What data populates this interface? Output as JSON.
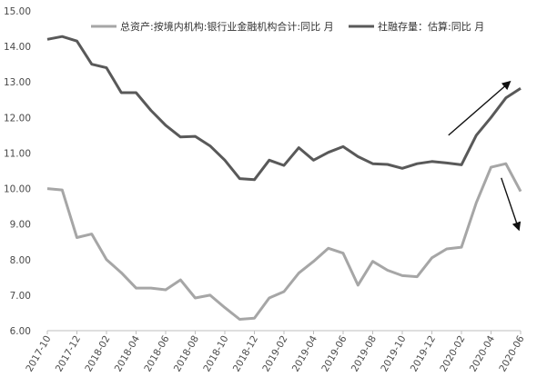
{
  "chart_data": {
    "type": "line",
    "x": [
      "2017-10",
      "2017-11",
      "2017-12",
      "2018-01",
      "2018-02",
      "2018-03",
      "2018-04",
      "2018-05",
      "2018-06",
      "2018-07",
      "2018-08",
      "2018-09",
      "2018-10",
      "2018-11",
      "2018-12",
      "2019-01",
      "2019-02",
      "2019-03",
      "2019-04",
      "2019-05",
      "2019-06",
      "2019-07",
      "2019-08",
      "2019-09",
      "2019-10",
      "2019-11",
      "2019-12",
      "2020-01",
      "2020-02",
      "2020-03",
      "2020-04",
      "2020-05",
      "2020-06"
    ],
    "x_tick_labels": [
      "2017-10",
      "2017-12",
      "2018-02",
      "2018-04",
      "2018-06",
      "2018-08",
      "2018-10",
      "2018-12",
      "2019-02",
      "2019-04",
      "2019-06",
      "2019-08",
      "2019-10",
      "2019-12",
      "2020-02",
      "2020-04",
      "2020-06"
    ],
    "ylim": [
      6.0,
      15.0
    ],
    "y_ticks": [
      "6.00",
      "7.00",
      "8.00",
      "9.00",
      "10.00",
      "11.00",
      "12.00",
      "13.00",
      "14.00",
      "15.00"
    ],
    "grid": false,
    "legend_placement": "top",
    "series": [
      {
        "name": "总资产:按境内机构:银行业金融机构合计:同比 月",
        "color": "#a6a6a6",
        "values": [
          10.0,
          9.96,
          8.62,
          8.72,
          8.0,
          7.63,
          7.2,
          7.2,
          7.15,
          7.43,
          6.92,
          7.0,
          6.65,
          6.32,
          6.35,
          6.92,
          7.1,
          7.62,
          7.95,
          8.32,
          8.18,
          7.28,
          7.95,
          7.7,
          7.55,
          7.52,
          8.05,
          8.3,
          8.35,
          9.6,
          10.6,
          10.7,
          9.92
        ]
      },
      {
        "name": "社融存量：估算:同比 月",
        "color": "#595959",
        "values": [
          14.2,
          14.28,
          14.15,
          13.5,
          13.4,
          12.7,
          12.7,
          12.2,
          11.78,
          11.45,
          11.47,
          11.2,
          10.8,
          10.28,
          10.25,
          10.8,
          10.65,
          11.15,
          10.8,
          11.02,
          11.18,
          10.9,
          10.7,
          10.68,
          10.57,
          10.7,
          10.76,
          10.72,
          10.67,
          11.5,
          12.0,
          12.55,
          12.82
        ]
      }
    ],
    "annotations": [
      {
        "kind": "arrow",
        "direction": "up",
        "from": [
          "2020-01",
          11.5
        ],
        "to": [
          "2020-06",
          13.0
        ]
      },
      {
        "kind": "arrow",
        "direction": "down",
        "from": [
          "2020-05",
          10.3
        ],
        "to": [
          "2020-06",
          8.85
        ]
      }
    ]
  }
}
